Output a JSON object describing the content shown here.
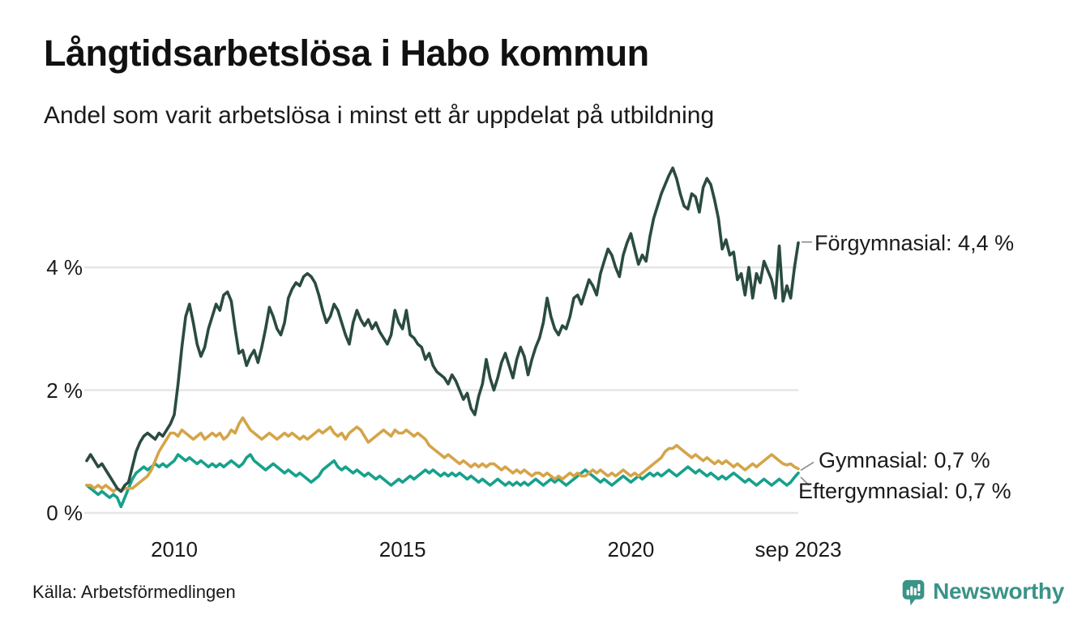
{
  "header": {
    "title": "Långtidsarbetslösa i Habo kommun",
    "subtitle": "Andel som varit arbetslösa i minst ett år uppdelat på utbildning"
  },
  "colors": {
    "forgymnasial": "#2a4b41",
    "gymnasial": "#d5a449",
    "eftergymnasial": "#16a18b",
    "grid": "#e5e5e5",
    "connector": "#8a8a8a",
    "text": "#1a1a1a",
    "brand": "#3a9387"
  },
  "chart_data": {
    "type": "line",
    "x_unit": "month",
    "x_start": "2008-02",
    "x_end": "2023-09",
    "x_tick_labels": [
      "2010",
      "2015",
      "2020",
      "sep 2023"
    ],
    "x_tick_month_index": [
      23,
      83,
      143,
      187
    ],
    "y_tick_labels": [
      "0 %",
      "2 %",
      "4 %"
    ],
    "y_ticks": [
      0,
      2,
      4
    ],
    "ylim": [
      0,
      5.7
    ],
    "grid": true,
    "legend_position": "end-of-line-labels",
    "series": [
      {
        "name": "Förgymnasial",
        "end_label": "Förgymnasial: 4,4 %",
        "end_value_text": "4,4 %",
        "color": "#2a4b41",
        "values": [
          0.85,
          0.95,
          0.85,
          0.75,
          0.8,
          0.7,
          0.6,
          0.5,
          0.4,
          0.35,
          0.45,
          0.5,
          0.75,
          1.0,
          1.15,
          1.25,
          1.3,
          1.25,
          1.2,
          1.3,
          1.25,
          1.35,
          1.45,
          1.6,
          2.1,
          2.7,
          3.2,
          3.4,
          3.1,
          2.75,
          2.55,
          2.7,
          3.0,
          3.2,
          3.4,
          3.3,
          3.55,
          3.6,
          3.45,
          3.0,
          2.6,
          2.65,
          2.4,
          2.55,
          2.65,
          2.45,
          2.7,
          3.0,
          3.35,
          3.2,
          3.0,
          2.9,
          3.1,
          3.5,
          3.65,
          3.75,
          3.7,
          3.85,
          3.9,
          3.85,
          3.75,
          3.55,
          3.3,
          3.1,
          3.2,
          3.4,
          3.3,
          3.1,
          2.9,
          2.75,
          3.1,
          3.3,
          3.15,
          3.05,
          3.15,
          3.0,
          3.1,
          2.95,
          2.85,
          2.75,
          2.9,
          3.3,
          3.1,
          3.0,
          3.3,
          2.9,
          2.85,
          2.75,
          2.7,
          2.5,
          2.6,
          2.4,
          2.3,
          2.25,
          2.2,
          2.1,
          2.25,
          2.15,
          2.0,
          1.85,
          1.95,
          1.7,
          1.6,
          1.9,
          2.1,
          2.5,
          2.2,
          2.0,
          2.2,
          2.45,
          2.6,
          2.4,
          2.2,
          2.5,
          2.7,
          2.55,
          2.25,
          2.5,
          2.7,
          2.85,
          3.1,
          3.5,
          3.2,
          3.0,
          2.9,
          3.05,
          3.0,
          3.2,
          3.5,
          3.55,
          3.4,
          3.6,
          3.8,
          3.7,
          3.55,
          3.9,
          4.1,
          4.3,
          4.2,
          4.0,
          3.85,
          4.2,
          4.4,
          4.55,
          4.3,
          4.05,
          4.2,
          4.1,
          4.5,
          4.8,
          5.0,
          5.2,
          5.35,
          5.5,
          5.62,
          5.45,
          5.2,
          5.0,
          4.95,
          5.2,
          5.15,
          4.9,
          5.3,
          5.45,
          5.35,
          5.1,
          4.8,
          4.3,
          4.45,
          4.2,
          4.25,
          3.8,
          3.9,
          3.55,
          4.0,
          3.5,
          3.9,
          3.75,
          4.1,
          3.95,
          3.8,
          3.5,
          4.35,
          3.45,
          3.7,
          3.5,
          4.0,
          4.4
        ]
      },
      {
        "name": "Gymnasial",
        "end_label": "Gymnasial: 0,7 %",
        "end_value_text": "0,7 %",
        "color": "#d5a449",
        "values": [
          0.45,
          0.45,
          0.4,
          0.45,
          0.4,
          0.45,
          0.4,
          0.35,
          0.4,
          0.35,
          0.4,
          0.4,
          0.4,
          0.45,
          0.5,
          0.55,
          0.6,
          0.7,
          0.85,
          1.0,
          1.1,
          1.2,
          1.3,
          1.3,
          1.25,
          1.35,
          1.3,
          1.25,
          1.2,
          1.25,
          1.3,
          1.2,
          1.25,
          1.3,
          1.25,
          1.3,
          1.2,
          1.25,
          1.35,
          1.3,
          1.45,
          1.55,
          1.45,
          1.35,
          1.3,
          1.25,
          1.2,
          1.25,
          1.3,
          1.25,
          1.2,
          1.25,
          1.3,
          1.25,
          1.3,
          1.25,
          1.2,
          1.25,
          1.2,
          1.25,
          1.3,
          1.35,
          1.3,
          1.35,
          1.4,
          1.3,
          1.25,
          1.3,
          1.2,
          1.3,
          1.35,
          1.4,
          1.35,
          1.25,
          1.15,
          1.2,
          1.25,
          1.3,
          1.35,
          1.3,
          1.25,
          1.35,
          1.3,
          1.3,
          1.35,
          1.3,
          1.25,
          1.3,
          1.25,
          1.2,
          1.1,
          1.05,
          1.0,
          0.95,
          0.9,
          0.95,
          0.9,
          0.85,
          0.8,
          0.85,
          0.8,
          0.75,
          0.8,
          0.75,
          0.8,
          0.75,
          0.8,
          0.8,
          0.75,
          0.7,
          0.75,
          0.7,
          0.65,
          0.7,
          0.65,
          0.7,
          0.65,
          0.6,
          0.65,
          0.65,
          0.6,
          0.65,
          0.6,
          0.55,
          0.6,
          0.55,
          0.6,
          0.65,
          0.6,
          0.65,
          0.6,
          0.6,
          0.65,
          0.7,
          0.65,
          0.7,
          0.65,
          0.6,
          0.65,
          0.6,
          0.65,
          0.7,
          0.65,
          0.6,
          0.65,
          0.6,
          0.65,
          0.7,
          0.75,
          0.8,
          0.85,
          0.9,
          1.0,
          1.05,
          1.05,
          1.1,
          1.05,
          1.0,
          0.95,
          0.9,
          0.95,
          0.9,
          0.85,
          0.9,
          0.85,
          0.8,
          0.85,
          0.8,
          0.85,
          0.8,
          0.75,
          0.8,
          0.75,
          0.7,
          0.75,
          0.8,
          0.75,
          0.8,
          0.85,
          0.9,
          0.95,
          0.9,
          0.85,
          0.8,
          0.78,
          0.8,
          0.75,
          0.72
        ]
      },
      {
        "name": "Eftergymnasial",
        "end_label": "Eftergymnasial: 0,7 %",
        "end_value_text": "0,7 %",
        "color": "#16a18b",
        "values": [
          0.45,
          0.4,
          0.35,
          0.3,
          0.35,
          0.3,
          0.25,
          0.3,
          0.25,
          0.1,
          0.25,
          0.4,
          0.55,
          0.65,
          0.7,
          0.75,
          0.7,
          0.75,
          0.8,
          0.75,
          0.8,
          0.75,
          0.8,
          0.85,
          0.95,
          0.9,
          0.85,
          0.9,
          0.85,
          0.8,
          0.85,
          0.8,
          0.75,
          0.8,
          0.75,
          0.8,
          0.75,
          0.8,
          0.85,
          0.8,
          0.75,
          0.8,
          0.9,
          0.95,
          0.85,
          0.8,
          0.75,
          0.7,
          0.75,
          0.8,
          0.75,
          0.7,
          0.65,
          0.7,
          0.65,
          0.6,
          0.65,
          0.6,
          0.55,
          0.5,
          0.55,
          0.6,
          0.7,
          0.75,
          0.8,
          0.85,
          0.75,
          0.7,
          0.75,
          0.7,
          0.65,
          0.7,
          0.65,
          0.6,
          0.65,
          0.6,
          0.55,
          0.6,
          0.55,
          0.5,
          0.45,
          0.5,
          0.55,
          0.5,
          0.55,
          0.6,
          0.55,
          0.6,
          0.65,
          0.7,
          0.65,
          0.7,
          0.65,
          0.6,
          0.65,
          0.6,
          0.65,
          0.6,
          0.65,
          0.6,
          0.55,
          0.6,
          0.55,
          0.5,
          0.55,
          0.5,
          0.45,
          0.5,
          0.55,
          0.5,
          0.45,
          0.5,
          0.45,
          0.5,
          0.45,
          0.5,
          0.45,
          0.5,
          0.55,
          0.5,
          0.45,
          0.5,
          0.55,
          0.5,
          0.55,
          0.5,
          0.45,
          0.5,
          0.55,
          0.6,
          0.65,
          0.7,
          0.65,
          0.6,
          0.55,
          0.5,
          0.55,
          0.5,
          0.45,
          0.5,
          0.55,
          0.6,
          0.55,
          0.5,
          0.55,
          0.6,
          0.55,
          0.6,
          0.65,
          0.6,
          0.65,
          0.6,
          0.65,
          0.7,
          0.65,
          0.6,
          0.65,
          0.7,
          0.75,
          0.7,
          0.65,
          0.7,
          0.65,
          0.6,
          0.65,
          0.6,
          0.55,
          0.6,
          0.55,
          0.6,
          0.65,
          0.6,
          0.55,
          0.5,
          0.55,
          0.5,
          0.45,
          0.5,
          0.55,
          0.5,
          0.45,
          0.5,
          0.55,
          0.5,
          0.45,
          0.5,
          0.58,
          0.65
        ]
      }
    ]
  },
  "footer": {
    "source": "Källa: Arbetsförmedlingen",
    "brand_name": "Newsworthy"
  }
}
